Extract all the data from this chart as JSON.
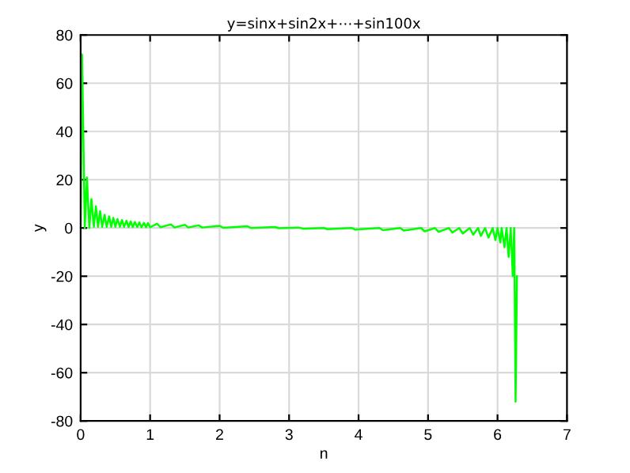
{
  "chart_data": {
    "type": "line",
    "title": "y=sinx+sin2x+⋯+sin100x",
    "xlabel": "n",
    "ylabel": "y",
    "xlim": [
      0,
      7
    ],
    "xticks": [
      0,
      1,
      2,
      3,
      4,
      5,
      6,
      7
    ],
    "ylim": [
      -80,
      80
    ],
    "yticks": [
      -80,
      -60,
      -40,
      -20,
      0,
      20,
      40,
      60,
      80
    ],
    "grid": true,
    "legend": false,
    "series": [
      {
        "color": "#00ff00",
        "x": [
          0,
          0.02,
          0.06,
          0.09,
          0.125,
          0.155,
          0.19,
          0.22,
          0.25,
          0.28,
          0.31,
          0.345,
          0.375,
          0.41,
          0.44,
          0.47,
          0.5,
          0.53,
          0.565,
          0.595,
          0.625,
          0.66,
          0.69,
          0.72,
          0.75,
          0.78,
          0.815,
          0.845,
          0.875,
          0.91,
          0.94,
          0.97,
          1.0,
          1.1,
          1.15,
          1.3,
          1.35,
          1.5,
          1.55,
          1.7,
          1.75,
          2.0,
          2.05,
          2.4,
          2.45,
          2.8,
          2.85,
          3.14,
          3.2,
          3.5,
          3.55,
          3.9,
          3.95,
          4.3,
          4.35,
          4.6,
          4.65,
          4.9,
          4.95,
          5.1,
          5.15,
          5.3,
          5.35,
          5.45,
          5.5,
          5.6,
          5.65,
          5.72,
          5.76,
          5.82,
          5.87,
          5.93,
          5.97,
          6.0,
          6.04,
          6.06,
          6.1,
          6.13,
          6.16,
          6.19,
          6.22,
          6.24,
          6.26,
          6.28
        ],
        "values": [
          0,
          72,
          0,
          21,
          0,
          12,
          0.5,
          9,
          0.5,
          7,
          0.5,
          5.5,
          0.5,
          4.8,
          0.5,
          4.2,
          0.5,
          3.7,
          0.5,
          3.3,
          0.5,
          3,
          0.4,
          2.7,
          0.4,
          2.5,
          0.4,
          2.3,
          0.3,
          2.1,
          0.3,
          2,
          0.3,
          1.8,
          0.3,
          1.5,
          0.2,
          1.3,
          0.2,
          1.1,
          0.2,
          0.9,
          0.1,
          0.7,
          0,
          0.4,
          -0.1,
          0.2,
          -0.3,
          0,
          -0.5,
          0,
          -0.7,
          0,
          -0.9,
          0,
          -1.1,
          0,
          -1.4,
          0,
          -1.6,
          0,
          -1.9,
          0,
          -2.3,
          0,
          -2.8,
          0,
          -3.3,
          0,
          -4,
          0,
          -5,
          0,
          -6,
          0,
          -8,
          0,
          -12,
          0,
          -20,
          0,
          -72,
          -20
        ]
      }
    ]
  }
}
